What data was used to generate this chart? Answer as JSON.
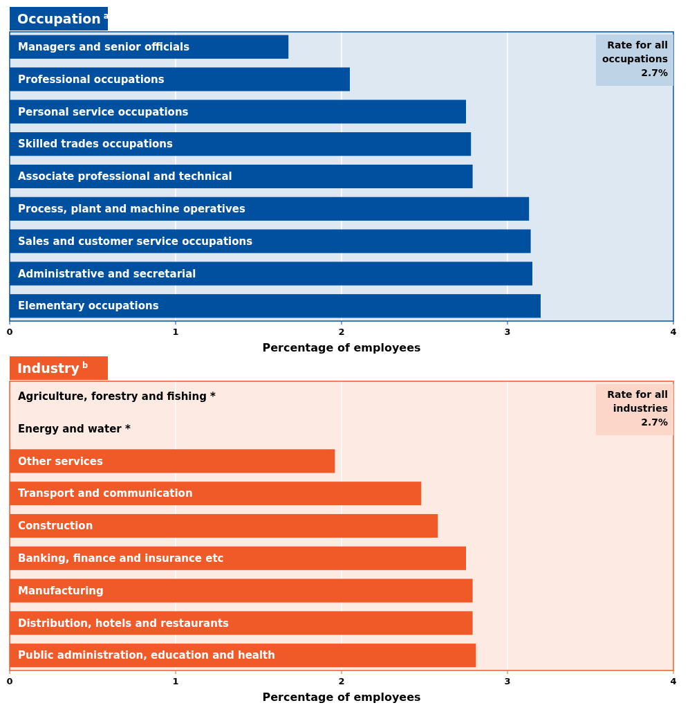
{
  "chart_data": [
    {
      "type": "bar",
      "orientation": "horizontal",
      "title": "Occupation$^{a}$",
      "xlabel": "Percentage of employees",
      "color": "#0050a0",
      "categories": [
        "Managers and senior officials",
        "Professional occupations",
        "Personal service occupations",
        "Skilled trades occupations",
        "Associate professional and technical",
        "Process, plant and machine operatives",
        "Sales and customer service occupations",
        "Administrative and secretarial",
        "Elementary occupations"
      ],
      "values": [
        1.68,
        2.05,
        2.75,
        2.78,
        2.79,
        3.13,
        3.14,
        3.15,
        3.2
      ],
      "xlim": [
        0,
        4
      ],
      "xticks": [
        0,
        1,
        2,
        3,
        4
      ],
      "grid": "x",
      "annotations": [
        "Rate for all occupations 2.7%"
      ]
    },
    {
      "type": "bar",
      "orientation": "horizontal",
      "title": "Industry$^{b}$",
      "xlabel": "Percentage of employees",
      "color": "#f05a28",
      "categories": [
        "Agriculture, forestry and fishing *",
        "Energy and water *",
        "Other services",
        "Transport and communication",
        "Construction",
        "Banking, finance and insurance etc",
        "Manufacturing",
        "Distribution, hotels and restaurants",
        "Public administration, education and health"
      ],
      "values": [
        null,
        null,
        1.96,
        2.48,
        2.58,
        2.75,
        2.79,
        2.79,
        2.81
      ],
      "xlim": [
        0,
        4
      ],
      "xticks": [
        0,
        1,
        2,
        3,
        4
      ],
      "grid": "x",
      "annotations": [
        "Rate for all industries 2.7%"
      ]
    }
  ]
}
